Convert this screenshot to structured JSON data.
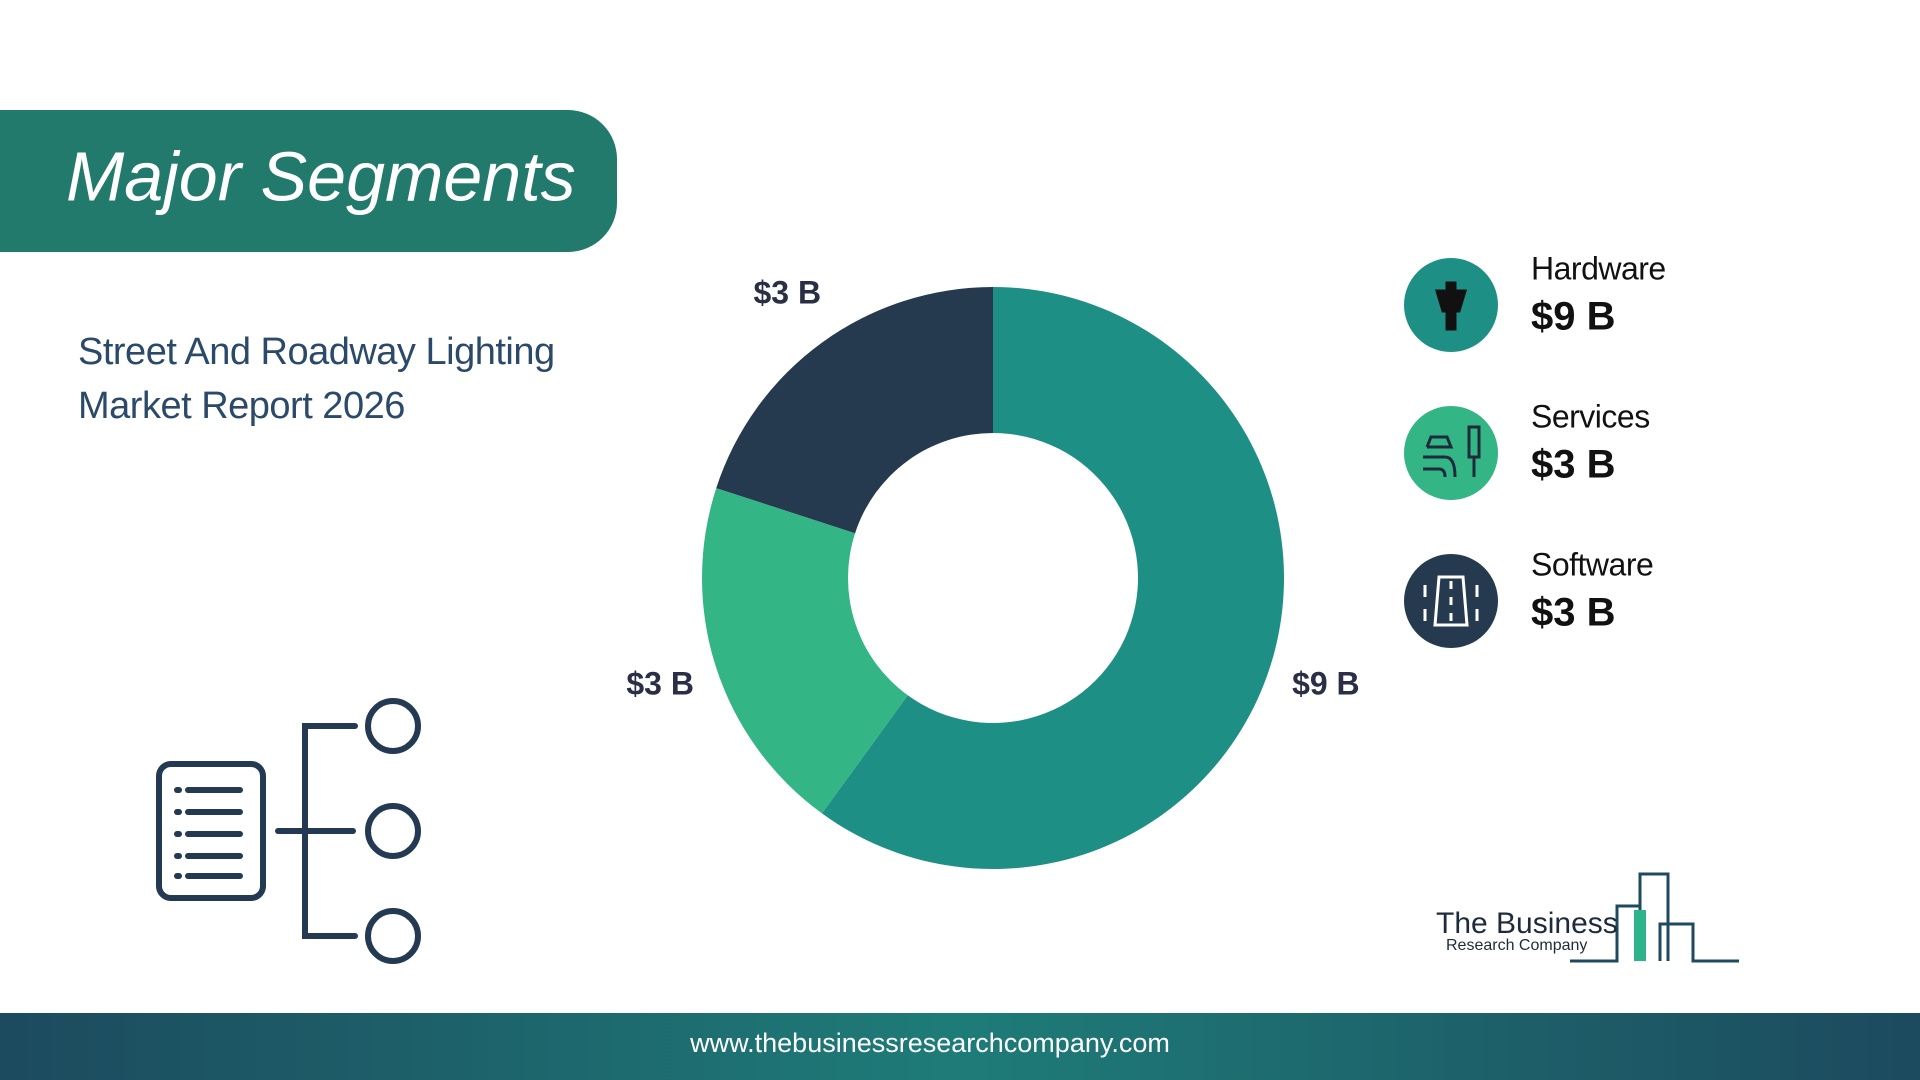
{
  "header": {
    "title": "Major Segments",
    "subtitle": "Street And Roadway Lighting Market Report 2026"
  },
  "chart_data": {
    "type": "donut",
    "categories": [
      "Hardware",
      "Services",
      "Software"
    ],
    "values": [
      9,
      3,
      3
    ],
    "value_labels": [
      "$9 B",
      "$3 B",
      "$3 B"
    ],
    "colors": [
      "#1e8f85",
      "#33b585",
      "#253a4f"
    ]
  },
  "logo": {
    "line1": "The Business",
    "line2": "Research Company"
  },
  "footer": {
    "url": "www.thebusinessresearchcompany.com"
  }
}
